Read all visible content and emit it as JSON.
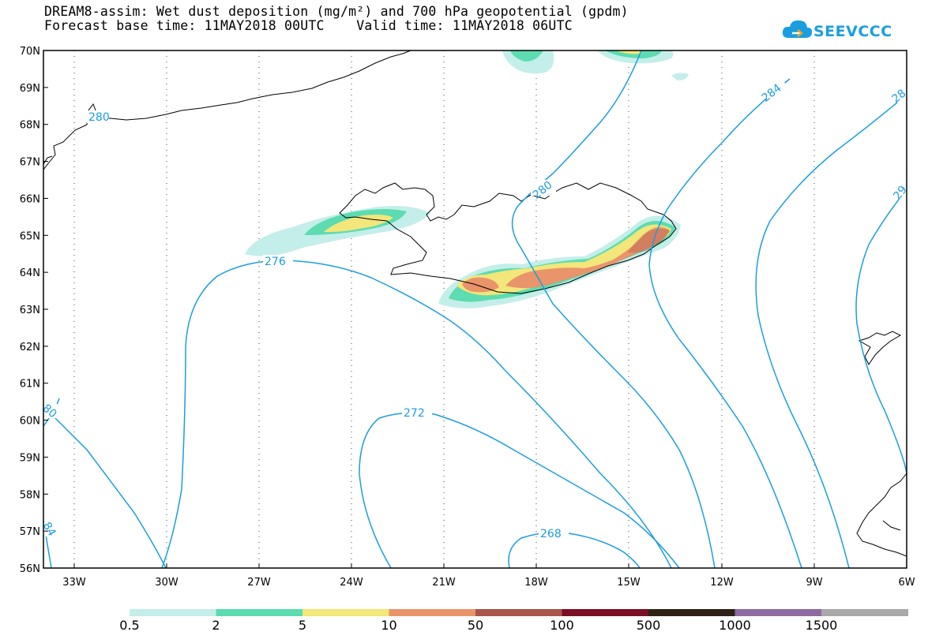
{
  "header": {
    "title_line1": "DREAM8-assim: Wet dust deposition (mg/m²) and 700 hPa geopotential (gpdm)",
    "title_line2": "Forecast base time: 11MAY2018 00UTC    Valid time: 11MAY2018 06UTC"
  },
  "logo": {
    "text": "SEEVCCC",
    "icon": "cloud-icon",
    "color": "#1a9ee0"
  },
  "map": {
    "lat_labels": [
      "70N",
      "69N",
      "68N",
      "67N",
      "66N",
      "65N",
      "64N",
      "63N",
      "62N",
      "61N",
      "60N",
      "59N",
      "58N",
      "57N",
      "56N"
    ],
    "lon_labels": [
      "33W",
      "30W",
      "27W",
      "24W",
      "21W",
      "18W",
      "15W",
      "12W",
      "9W",
      "6W"
    ],
    "contour_color": "#1a9ee0",
    "contour_labels": [
      "280",
      "280",
      "284",
      "28",
      "29",
      "276",
      "80",
      "84",
      "272",
      "268"
    ]
  },
  "legend": {
    "colors": [
      "#c4eeea",
      "#5cdcb0",
      "#f3e67a",
      "#e9946a",
      "#a8554a",
      "#7a0e25",
      "#2e2116",
      "#8e6aa0",
      "#a9a9a9"
    ],
    "labels": [
      "0.5",
      "2",
      "5",
      "10",
      "50",
      "100",
      "500",
      "1000",
      "1500"
    ]
  }
}
